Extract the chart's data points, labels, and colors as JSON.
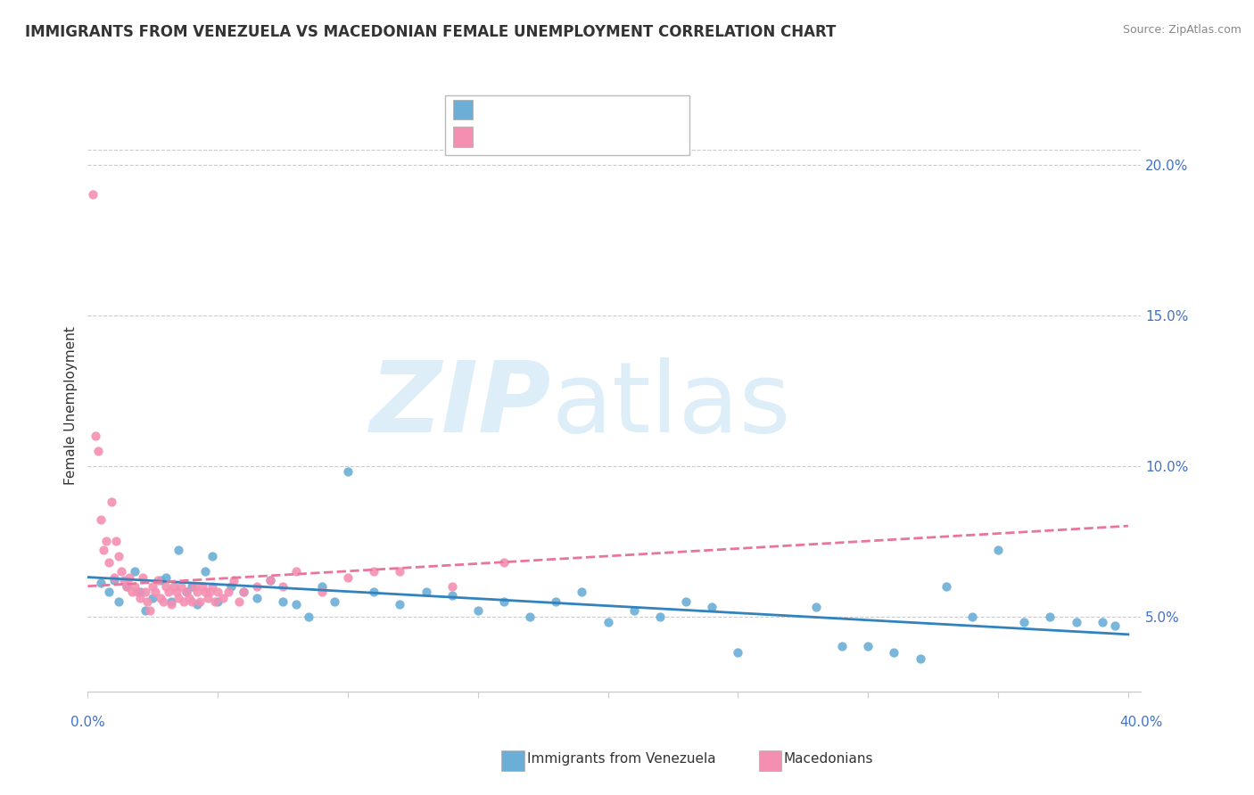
{
  "title": "IMMIGRANTS FROM VENEZUELA VS MACEDONIAN FEMALE UNEMPLOYMENT CORRELATION CHART",
  "source": "Source: ZipAtlas.com",
  "ylabel": "Female Unemployment",
  "right_yticks": [
    "5.0%",
    "10.0%",
    "15.0%",
    "20.0%"
  ],
  "right_ytick_vals": [
    0.05,
    0.1,
    0.15,
    0.2
  ],
  "blue_scatter": [
    [
      0.005,
      0.061
    ],
    [
      0.008,
      0.058
    ],
    [
      0.01,
      0.062
    ],
    [
      0.012,
      0.055
    ],
    [
      0.015,
      0.06
    ],
    [
      0.018,
      0.065
    ],
    [
      0.02,
      0.058
    ],
    [
      0.022,
      0.052
    ],
    [
      0.025,
      0.056
    ],
    [
      0.028,
      0.062
    ],
    [
      0.03,
      0.063
    ],
    [
      0.032,
      0.055
    ],
    [
      0.035,
      0.072
    ],
    [
      0.038,
      0.058
    ],
    [
      0.04,
      0.06
    ],
    [
      0.042,
      0.054
    ],
    [
      0.045,
      0.065
    ],
    [
      0.048,
      0.07
    ],
    [
      0.05,
      0.055
    ],
    [
      0.055,
      0.06
    ],
    [
      0.06,
      0.058
    ],
    [
      0.065,
      0.056
    ],
    [
      0.07,
      0.062
    ],
    [
      0.075,
      0.055
    ],
    [
      0.08,
      0.054
    ],
    [
      0.085,
      0.05
    ],
    [
      0.09,
      0.06
    ],
    [
      0.095,
      0.055
    ],
    [
      0.1,
      0.098
    ],
    [
      0.11,
      0.058
    ],
    [
      0.12,
      0.054
    ],
    [
      0.13,
      0.058
    ],
    [
      0.14,
      0.057
    ],
    [
      0.15,
      0.052
    ],
    [
      0.16,
      0.055
    ],
    [
      0.17,
      0.05
    ],
    [
      0.18,
      0.055
    ],
    [
      0.19,
      0.058
    ],
    [
      0.2,
      0.048
    ],
    [
      0.21,
      0.052
    ],
    [
      0.22,
      0.05
    ],
    [
      0.23,
      0.055
    ],
    [
      0.24,
      0.053
    ],
    [
      0.25,
      0.038
    ],
    [
      0.28,
      0.053
    ],
    [
      0.29,
      0.04
    ],
    [
      0.3,
      0.04
    ],
    [
      0.31,
      0.038
    ],
    [
      0.32,
      0.036
    ],
    [
      0.33,
      0.06
    ],
    [
      0.34,
      0.05
    ],
    [
      0.35,
      0.072
    ],
    [
      0.36,
      0.048
    ],
    [
      0.37,
      0.05
    ],
    [
      0.38,
      0.048
    ],
    [
      0.39,
      0.048
    ],
    [
      0.395,
      0.047
    ]
  ],
  "pink_scatter": [
    [
      0.002,
      0.19
    ],
    [
      0.003,
      0.11
    ],
    [
      0.004,
      0.105
    ],
    [
      0.005,
      0.082
    ],
    [
      0.006,
      0.072
    ],
    [
      0.007,
      0.075
    ],
    [
      0.008,
      0.068
    ],
    [
      0.009,
      0.088
    ],
    [
      0.01,
      0.063
    ],
    [
      0.011,
      0.075
    ],
    [
      0.012,
      0.07
    ],
    [
      0.013,
      0.065
    ],
    [
      0.014,
      0.062
    ],
    [
      0.015,
      0.06
    ],
    [
      0.016,
      0.063
    ],
    [
      0.017,
      0.058
    ],
    [
      0.018,
      0.06
    ],
    [
      0.019,
      0.058
    ],
    [
      0.02,
      0.056
    ],
    [
      0.021,
      0.063
    ],
    [
      0.022,
      0.058
    ],
    [
      0.023,
      0.055
    ],
    [
      0.024,
      0.052
    ],
    [
      0.025,
      0.06
    ],
    [
      0.026,
      0.058
    ],
    [
      0.027,
      0.062
    ],
    [
      0.028,
      0.056
    ],
    [
      0.029,
      0.055
    ],
    [
      0.03,
      0.06
    ],
    [
      0.031,
      0.058
    ],
    [
      0.032,
      0.054
    ],
    [
      0.033,
      0.06
    ],
    [
      0.034,
      0.058
    ],
    [
      0.035,
      0.056
    ],
    [
      0.036,
      0.06
    ],
    [
      0.037,
      0.055
    ],
    [
      0.038,
      0.058
    ],
    [
      0.039,
      0.056
    ],
    [
      0.04,
      0.055
    ],
    [
      0.041,
      0.06
    ],
    [
      0.042,
      0.058
    ],
    [
      0.043,
      0.055
    ],
    [
      0.044,
      0.06
    ],
    [
      0.045,
      0.058
    ],
    [
      0.046,
      0.056
    ],
    [
      0.047,
      0.058
    ],
    [
      0.048,
      0.06
    ],
    [
      0.049,
      0.055
    ],
    [
      0.05,
      0.058
    ],
    [
      0.052,
      0.056
    ],
    [
      0.054,
      0.058
    ],
    [
      0.056,
      0.062
    ],
    [
      0.058,
      0.055
    ],
    [
      0.06,
      0.058
    ],
    [
      0.065,
      0.06
    ],
    [
      0.07,
      0.062
    ],
    [
      0.075,
      0.06
    ],
    [
      0.08,
      0.065
    ],
    [
      0.09,
      0.058
    ],
    [
      0.1,
      0.063
    ],
    [
      0.11,
      0.065
    ],
    [
      0.12,
      0.065
    ],
    [
      0.14,
      0.06
    ],
    [
      0.16,
      0.068
    ]
  ],
  "blue_line_x": [
    0.0,
    0.4
  ],
  "blue_line_y": [
    0.063,
    0.044
  ],
  "pink_line_x": [
    0.0,
    0.4
  ],
  "pink_line_y": [
    0.06,
    0.08
  ],
  "blue_dot_color": "#6baed6",
  "pink_dot_color": "#f48fb1",
  "blue_line_color": "#3182bd",
  "pink_line_color": "#e8769a",
  "background_color": "#ffffff",
  "text_color": "#333333",
  "axis_label_color": "#4472c4",
  "xmin": 0.0,
  "xmax": 0.405,
  "ymin": 0.025,
  "ymax": 0.215,
  "grid_color": "#cccccc",
  "watermark_color": "#ddeef8"
}
